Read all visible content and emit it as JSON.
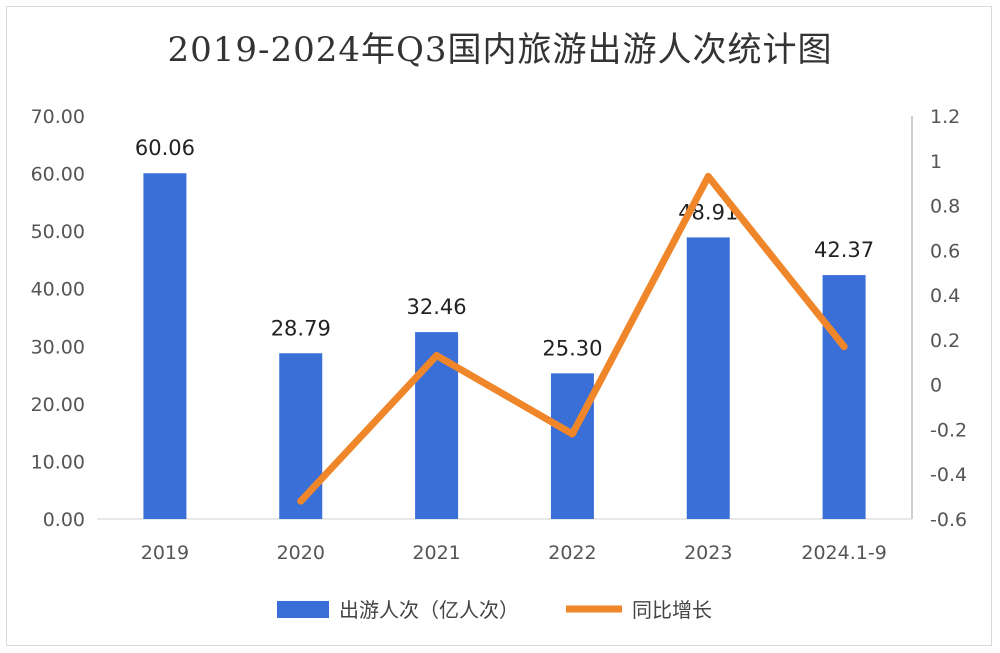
{
  "chart_data": {
    "type": "bar",
    "title": "2019-2024年Q3国内旅游出游人次统计图",
    "categories": [
      "2019",
      "2020",
      "2021",
      "2022",
      "2023",
      "2024.1-9"
    ],
    "series": [
      {
        "name": "出游人次（亿人次）",
        "type": "bar",
        "axis": "left",
        "color": "#3a6fd8",
        "values": [
          60.06,
          28.79,
          32.46,
          25.3,
          48.91,
          42.37
        ],
        "labels": [
          "60.06",
          "28.79",
          "32.46",
          "25.30",
          "48.91",
          "42.37"
        ]
      },
      {
        "name": "同比增长",
        "type": "line",
        "axis": "right",
        "color": "#f0862a",
        "values": [
          null,
          -0.52,
          0.13,
          -0.22,
          0.93,
          0.17
        ]
      }
    ],
    "y_left": {
      "lim": [
        0,
        70
      ],
      "ticks": [
        "0.00",
        "10.00",
        "20.00",
        "30.00",
        "40.00",
        "50.00",
        "60.00",
        "70.00"
      ]
    },
    "y_right": {
      "lim": [
        -0.6,
        1.2
      ],
      "ticks": [
        "-0.6",
        "-0.4",
        "-0.2",
        "0",
        "0.2",
        "0.4",
        "0.6",
        "0.8",
        "1",
        "1.2"
      ]
    },
    "legend_position": "bottom",
    "grid": false
  }
}
